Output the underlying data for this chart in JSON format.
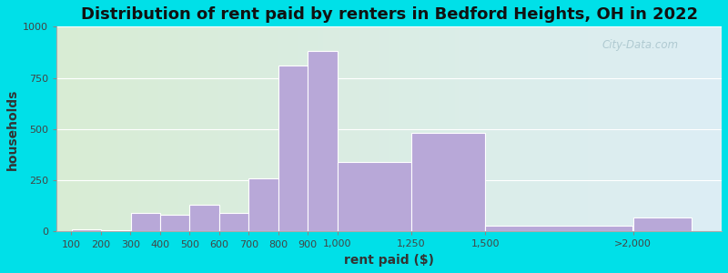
{
  "title": "Distribution of rent paid by renters in Bedford Heights, OH in 2022",
  "xlabel": "rent paid ($)",
  "ylabel": "households",
  "bar_color": "#b8a8d8",
  "bar_edge_color": "#ffffff",
  "categories": [
    "100",
    "200",
    "300",
    "400",
    "500",
    "600",
    "700",
    "800",
    "900",
    "1,000",
    "1,250",
    "1,500",
    ">2,000"
  ],
  "values": [
    10,
    5,
    90,
    80,
    130,
    90,
    260,
    810,
    880,
    340,
    480,
    30,
    70
  ],
  "bar_lefts": [
    100,
    200,
    300,
    400,
    500,
    600,
    700,
    800,
    900,
    1000,
    1250,
    1500,
    2000
  ],
  "bar_widths": [
    100,
    100,
    100,
    100,
    100,
    100,
    100,
    100,
    100,
    250,
    250,
    500,
    200
  ],
  "xlim": [
    50,
    2300
  ],
  "xtick_positions": [
    100,
    200,
    300,
    400,
    500,
    600,
    700,
    800,
    900,
    1000,
    1250,
    1500,
    2000
  ],
  "xtick_labels": [
    "100",
    "200",
    "300",
    "400",
    "500",
    "600",
    "700",
    "800",
    "900",
    "1,000",
    "1,250",
    "1,500",
    ">2,000"
  ],
  "ylim": [
    0,
    1000
  ],
  "yticks": [
    0,
    250,
    500,
    750,
    1000
  ],
  "bg_color_left": "#d8ecd4",
  "bg_color_right": "#ddeef5",
  "outer_color": "#00e0e8",
  "title_fontsize": 13,
  "axis_label_fontsize": 10,
  "tick_fontsize": 8,
  "watermark_text": "City-Data.com"
}
